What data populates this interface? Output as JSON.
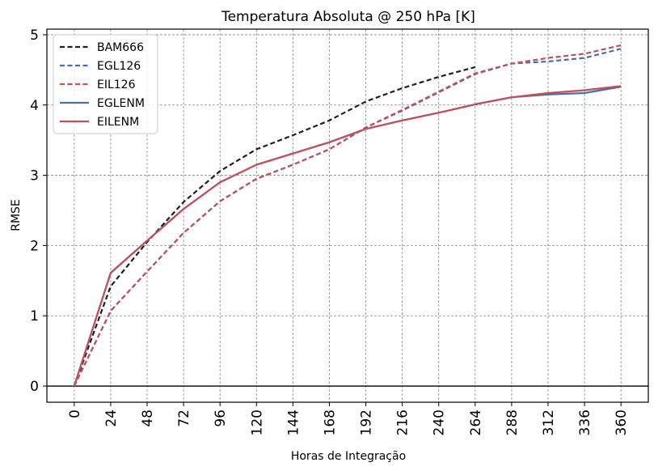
{
  "chart_data": {
    "type": "line",
    "title": "Temperatura Absoluta @ 250 hPa [K]",
    "xlabel": "Horas de Integração",
    "ylabel": "RMSE",
    "x": [
      0,
      24,
      48,
      72,
      96,
      120,
      144,
      168,
      192,
      216,
      240,
      264,
      288,
      312,
      336,
      360
    ],
    "xticks": [
      "0",
      "24",
      "48",
      "72",
      "96",
      "120",
      "144",
      "168",
      "192",
      "216",
      "240",
      "264",
      "288",
      "312",
      "336",
      "360"
    ],
    "yticks": [
      "0",
      "1",
      "2",
      "3",
      "4",
      "5"
    ],
    "xlim": [
      -18,
      378
    ],
    "ylim": [
      -0.23,
      5.08
    ],
    "grid": true,
    "legend_position": "top-left",
    "series": [
      {
        "name": "BAM666",
        "color": "#1f1f1f",
        "dash": "dashed",
        "x": [
          0,
          24,
          48,
          72,
          96,
          120,
          144,
          168,
          192,
          216,
          240,
          264
        ],
        "values": [
          0.0,
          1.42,
          2.05,
          2.62,
          3.06,
          3.37,
          3.57,
          3.78,
          4.05,
          4.24,
          4.4,
          4.54
        ]
      },
      {
        "name": "EGL126",
        "color": "#4c6fa8",
        "dash": "dashed",
        "x": [
          0,
          24,
          48,
          72,
          96,
          120,
          144,
          168,
          192,
          216,
          240,
          264,
          288,
          312,
          336,
          360
        ],
        "values": [
          0.0,
          1.07,
          1.63,
          2.18,
          2.63,
          2.95,
          3.15,
          3.37,
          3.68,
          3.92,
          4.18,
          4.44,
          4.59,
          4.62,
          4.67,
          4.8
        ]
      },
      {
        "name": "EIL126",
        "color": "#c0505a",
        "dash": "dashed",
        "x": [
          0,
          24,
          48,
          72,
          96,
          120,
          144,
          168,
          192,
          216,
          240,
          264,
          288,
          312,
          336,
          360
        ],
        "values": [
          0.0,
          1.07,
          1.63,
          2.18,
          2.63,
          2.95,
          3.15,
          3.37,
          3.68,
          3.93,
          4.19,
          4.45,
          4.59,
          4.67,
          4.73,
          4.85
        ]
      },
      {
        "name": "EGLENM",
        "color": "#4c6fa8",
        "dash": "solid",
        "x": [
          0,
          24,
          48,
          72,
          96,
          120,
          144,
          168,
          192,
          216,
          240,
          264,
          288,
          312,
          336,
          360
        ],
        "values": [
          0.0,
          1.61,
          2.07,
          2.52,
          2.9,
          3.15,
          3.31,
          3.47,
          3.66,
          3.78,
          3.89,
          4.01,
          4.11,
          4.15,
          4.17,
          4.26
        ]
      },
      {
        "name": "EILENM",
        "color": "#c0505a",
        "dash": "solid",
        "x": [
          0,
          24,
          48,
          72,
          96,
          120,
          144,
          168,
          192,
          216,
          240,
          264,
          288,
          312,
          336,
          360
        ],
        "values": [
          0.0,
          1.61,
          2.07,
          2.52,
          2.9,
          3.15,
          3.31,
          3.47,
          3.66,
          3.78,
          3.89,
          4.01,
          4.11,
          4.17,
          4.21,
          4.27
        ]
      }
    ]
  }
}
